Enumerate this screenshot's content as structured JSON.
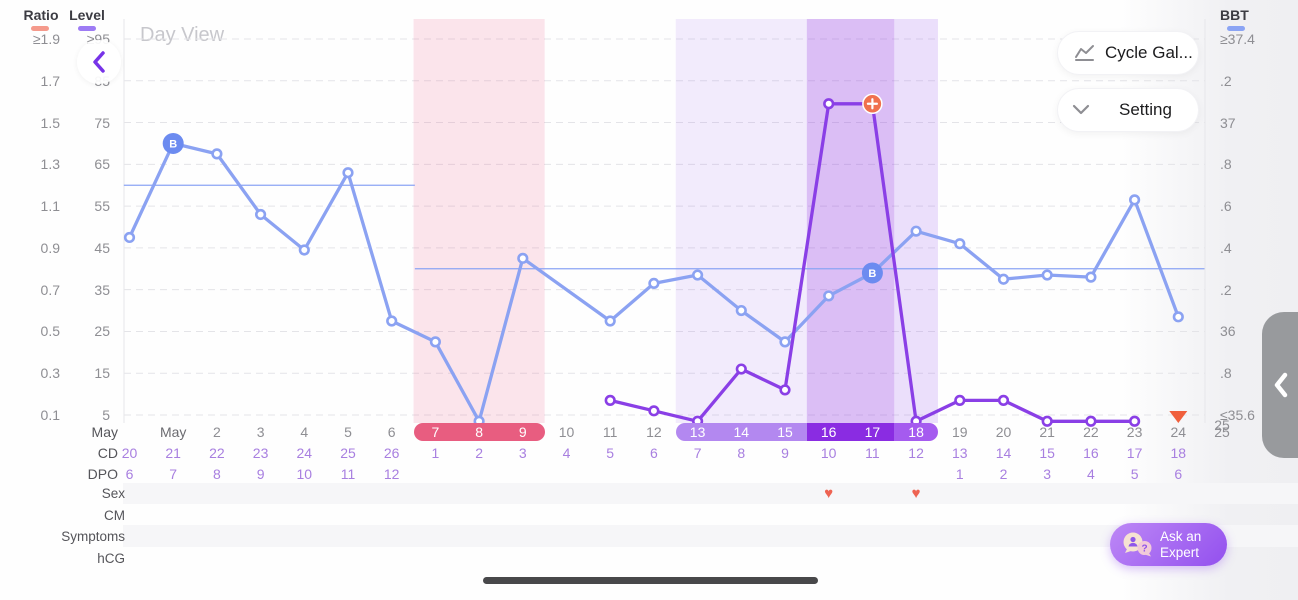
{
  "header": {
    "title": "Day View",
    "buttons": [
      {
        "label": "Cycle Gal...",
        "icon": "line-chart-icon"
      },
      {
        "label": "Setting",
        "icon": "chevron-down-icon"
      }
    ]
  },
  "legend": {
    "ratio_label": "Ratio",
    "level_label": "Level",
    "bbt_label": "BBT",
    "ratio_color": "#f59a8c",
    "level_color": "#9d7bf4",
    "bbt_color": "#8ba4f4"
  },
  "rows": {
    "month_label": "May",
    "cd_label": "CD",
    "dpo_label": "DPO",
    "sex_label": "Sex",
    "cm_label": "CM",
    "symptoms_label": "Symptoms",
    "hcg_label": "hCG"
  },
  "ask_expert": {
    "line1": "Ask an",
    "line2": "Expert"
  },
  "chart_data": {
    "type": "line",
    "axes": {
      "left_ratio": {
        "title": "Ratio",
        "ticks": [
          "≥1.9",
          "1.7",
          "1.5",
          "1.3",
          "1.1",
          "0.9",
          "0.7",
          "0.5",
          "0.3",
          "0.1"
        ]
      },
      "left_level": {
        "title": "Level",
        "ticks": [
          "≥95",
          "85",
          "75",
          "65",
          "55",
          "45",
          "35",
          "25",
          "15",
          "5"
        ],
        "range": [
          5,
          95
        ]
      },
      "right_bbt": {
        "title": "BBT",
        "ticks": [
          "≥37.4",
          ".2",
          "37",
          ".8",
          ".6",
          ".4",
          ".2",
          "36",
          ".8",
          "≤35.6"
        ],
        "range": [
          35.6,
          37.4
        ]
      },
      "grid": "dashed-horizontal"
    },
    "columns": [
      {
        "date": "",
        "cd": "20",
        "dpo": "6"
      },
      {
        "date": "May",
        "cd": "21",
        "dpo": "7"
      },
      {
        "date": "2",
        "cd": "22",
        "dpo": "8"
      },
      {
        "date": "3",
        "cd": "23",
        "dpo": "9"
      },
      {
        "date": "4",
        "cd": "24",
        "dpo": "10"
      },
      {
        "date": "5",
        "cd": "25",
        "dpo": "11"
      },
      {
        "date": "6",
        "cd": "26",
        "dpo": "12"
      },
      {
        "date": "7",
        "cd": "1",
        "dpo": ""
      },
      {
        "date": "8",
        "cd": "2",
        "dpo": ""
      },
      {
        "date": "9",
        "cd": "3",
        "dpo": ""
      },
      {
        "date": "10",
        "cd": "4",
        "dpo": ""
      },
      {
        "date": "11",
        "cd": "5",
        "dpo": ""
      },
      {
        "date": "12",
        "cd": "6",
        "dpo": ""
      },
      {
        "date": "13",
        "cd": "7",
        "dpo": ""
      },
      {
        "date": "14",
        "cd": "8",
        "dpo": ""
      },
      {
        "date": "15",
        "cd": "9",
        "dpo": ""
      },
      {
        "date": "16",
        "cd": "10",
        "dpo": ""
      },
      {
        "date": "17",
        "cd": "11",
        "dpo": ""
      },
      {
        "date": "18",
        "cd": "12",
        "dpo": ""
      },
      {
        "date": "19",
        "cd": "13",
        "dpo": "1"
      },
      {
        "date": "20",
        "cd": "14",
        "dpo": "2"
      },
      {
        "date": "21",
        "cd": "15",
        "dpo": "3"
      },
      {
        "date": "22",
        "cd": "16",
        "dpo": "4"
      },
      {
        "date": "23",
        "cd": "17",
        "dpo": "5"
      },
      {
        "date": "24",
        "cd": "18",
        "dpo": "6"
      },
      {
        "date": "25",
        "cd": "",
        "dpo": ""
      }
    ],
    "series": [
      {
        "name": "BBT",
        "axis": "bbt",
        "color": "#8ba2f2",
        "values": [
          36.45,
          36.9,
          36.85,
          36.56,
          36.39,
          36.76,
          36.05,
          35.95,
          35.57,
          36.35,
          null,
          36.05,
          36.23,
          36.27,
          36.1,
          35.95,
          36.17,
          36.28,
          36.48,
          36.42,
          36.25,
          36.27,
          36.26,
          36.63,
          36.07,
          null
        ]
      },
      {
        "name": "LH Level",
        "axis": "level",
        "color": "#8a3fe6",
        "values": [
          null,
          null,
          null,
          null,
          null,
          null,
          null,
          null,
          null,
          null,
          null,
          8.5,
          6,
          3.5,
          16,
          11,
          79.5,
          79.5,
          3.5,
          8.5,
          8.5,
          3.5,
          3.5,
          3.5,
          null,
          null
        ]
      }
    ],
    "coverlines": [
      {
        "bbt": 36.7,
        "col_start": -0.13,
        "col_end": 6.53
      },
      {
        "bbt": 36.3,
        "col_start": 6.53,
        "col_end": 24.6
      }
    ],
    "regions": [
      {
        "name": "period-region",
        "col_start": 6.5,
        "col_end": 9.5,
        "color": "rgba(240,98,140,0.17)"
      },
      {
        "name": "fertile-region",
        "col_start": 12.5,
        "col_end": 15.5,
        "color": "rgba(150,84,240,0.11)"
      },
      {
        "name": "peak-region",
        "col_start": 15.5,
        "col_end": 17.5,
        "color": "rgba(138,44,226,0.30)"
      },
      {
        "name": "fertile-end-region",
        "col_start": 17.5,
        "col_end": 18.5,
        "color": "rgba(150,84,240,0.18)"
      }
    ],
    "pills": [
      {
        "name": "period-pill",
        "label_days": "7-9",
        "col_start": 6.5,
        "col_end": 9.5,
        "color": "#e85d80",
        "round_left": true,
        "round_right": true
      },
      {
        "name": "fertile-pill",
        "label_days": "13-15",
        "col_start": 12.5,
        "col_end": 15.5,
        "color": "#b388f0",
        "round_left": true,
        "round_right": false
      },
      {
        "name": "peak-pill",
        "label_days": "16-17",
        "col_start": 15.5,
        "col_end": 17.5,
        "color": "#8a2ce2",
        "round_left": false,
        "round_right": false
      },
      {
        "name": "ovulation-pill",
        "label_days": "18",
        "col_start": 17.5,
        "col_end": 18.5,
        "color": "#a55bef",
        "round_left": false,
        "round_right": true
      }
    ],
    "markers": {
      "b_markers": [
        {
          "col": 1,
          "label": "B"
        },
        {
          "col": 17,
          "label": "B"
        }
      ],
      "plus_marker": {
        "col": 17,
        "label": "+",
        "color": "#f0714e"
      },
      "today_triangle": {
        "col": 24,
        "color": "#f05f3c"
      }
    },
    "sex_hearts_cols": [
      16,
      18
    ]
  }
}
